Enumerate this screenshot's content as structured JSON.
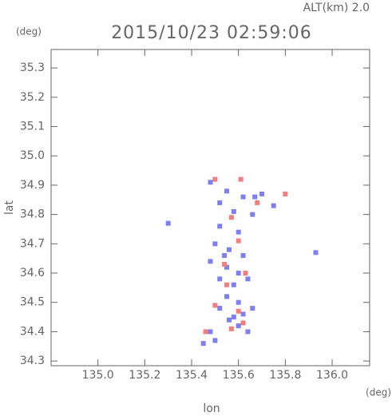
{
  "chart_data": {
    "type": "scatter",
    "title": "2015/10/23 02:59:06",
    "subtitle": "ALT(km) 2.0",
    "y_unit": "(deg)",
    "x_unit": "(deg)",
    "xlabel": "lon",
    "ylabel": "lat",
    "xlim": [
      134.8,
      136.16
    ],
    "ylim": [
      34.284,
      35.363
    ],
    "xticks": [
      {
        "value": 135,
        "label": "135.0"
      },
      135.2,
      135.4,
      135.6,
      135.8,
      {
        "value": 136,
        "label": "136.0"
      }
    ],
    "yticks": [
      34.3,
      34.4,
      34.5,
      34.6,
      34.7,
      34.8,
      34.9,
      {
        "value": 35,
        "label": "35.0"
      },
      35.1,
      35.2,
      35.3
    ],
    "series": [
      {
        "color": "#7f7ff0",
        "x": [
          135.48,
          135.55,
          135.62,
          135.7,
          135.52,
          135.58,
          135.66,
          135.75,
          135.52,
          135.6,
          135.3,
          135.93,
          135.5,
          135.56,
          135.62,
          135.48,
          135.55,
          135.6,
          135.52,
          135.58,
          135.64,
          135.55,
          135.6,
          135.52,
          135.62,
          135.66,
          135.56,
          135.6,
          135.48,
          135.64,
          135.45,
          135.5,
          135.58,
          135.54,
          135.67
        ],
        "values": [
          34.91,
          34.88,
          34.86,
          34.87,
          34.84,
          34.81,
          34.8,
          34.83,
          34.76,
          34.74,
          34.77,
          34.67,
          34.7,
          34.68,
          34.66,
          34.64,
          34.62,
          34.6,
          34.58,
          34.56,
          34.58,
          34.52,
          34.5,
          34.48,
          34.46,
          34.48,
          34.44,
          34.42,
          34.4,
          34.4,
          34.36,
          34.37,
          34.45,
          34.66,
          34.86
        ]
      },
      {
        "color": "#f07f7f",
        "x": [
          135.5,
          135.61,
          135.8,
          135.68,
          135.57,
          135.6,
          135.54,
          135.63,
          135.55,
          135.5,
          135.6,
          135.57,
          135.62,
          135.46
        ],
        "values": [
          34.92,
          34.92,
          34.87,
          34.84,
          34.79,
          34.71,
          34.63,
          34.6,
          34.56,
          34.49,
          34.47,
          34.41,
          34.43,
          34.4
        ]
      }
    ]
  }
}
